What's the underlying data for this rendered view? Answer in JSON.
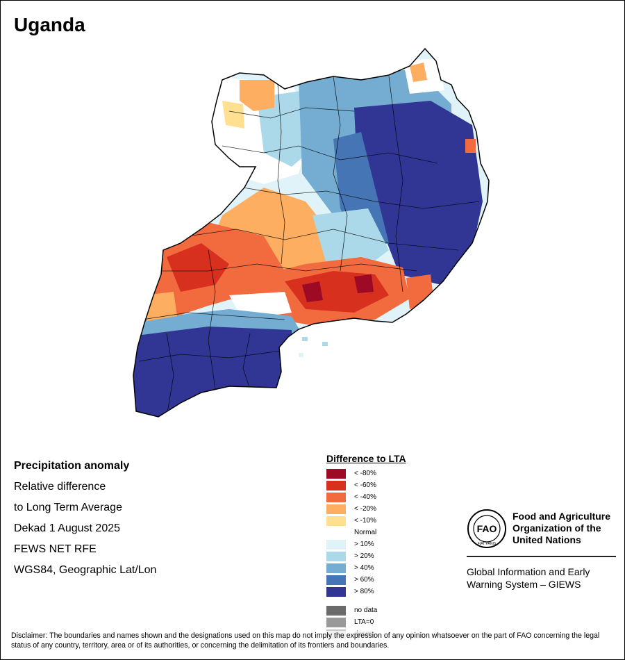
{
  "title": "Uganda",
  "info": {
    "heading": "Precipitation anomaly",
    "lines": [
      "Relative difference",
      "to Long Term Average",
      "Dekad 1 August 2025",
      "FEWS NET RFE",
      "WGS84, Geographic Lat/Lon"
    ]
  },
  "legend": {
    "title": "Difference to LTA",
    "classes": [
      {
        "label": "< -80%",
        "color": "#9e0a26"
      },
      {
        "label": "< -60%",
        "color": "#d7301f"
      },
      {
        "label": "< -40%",
        "color": "#f26b3f"
      },
      {
        "label": "< -20%",
        "color": "#fdae61"
      },
      {
        "label": "< -10%",
        "color": "#fee090"
      },
      {
        "label": "Normal",
        "color": "#ffffff"
      },
      {
        "label": "> 10%",
        "color": "#e0f3f8"
      },
      {
        "label": "> 20%",
        "color": "#abd9e9"
      },
      {
        "label": "> 40%",
        "color": "#74add1"
      },
      {
        "label": "> 60%",
        "color": "#4575b4"
      },
      {
        "label": "> 80%",
        "color": "#313695"
      }
    ],
    "special": [
      {
        "label": "no data",
        "color": "#6b6b6b"
      },
      {
        "label": "LTA=0",
        "color": "#999999"
      },
      {
        "label": "desert",
        "color": "#c8c8c8"
      }
    ]
  },
  "org": {
    "logo_text": "FAO",
    "logo_ring_text": "FIAT PANIS",
    "name": "Food and Agriculture Organization of the United Nations",
    "program": "Global Information and Early Warning System – GIEWS"
  },
  "disclaimer": "Disclaimer: The boundaries and names shown and the designations used on this map do not imply the expression of any opinion whatsoever on the part of FAO concerning the legal status of any country, territory, area or of its authorities, or concerning the delimitation of its frontiers and boundaries."
}
